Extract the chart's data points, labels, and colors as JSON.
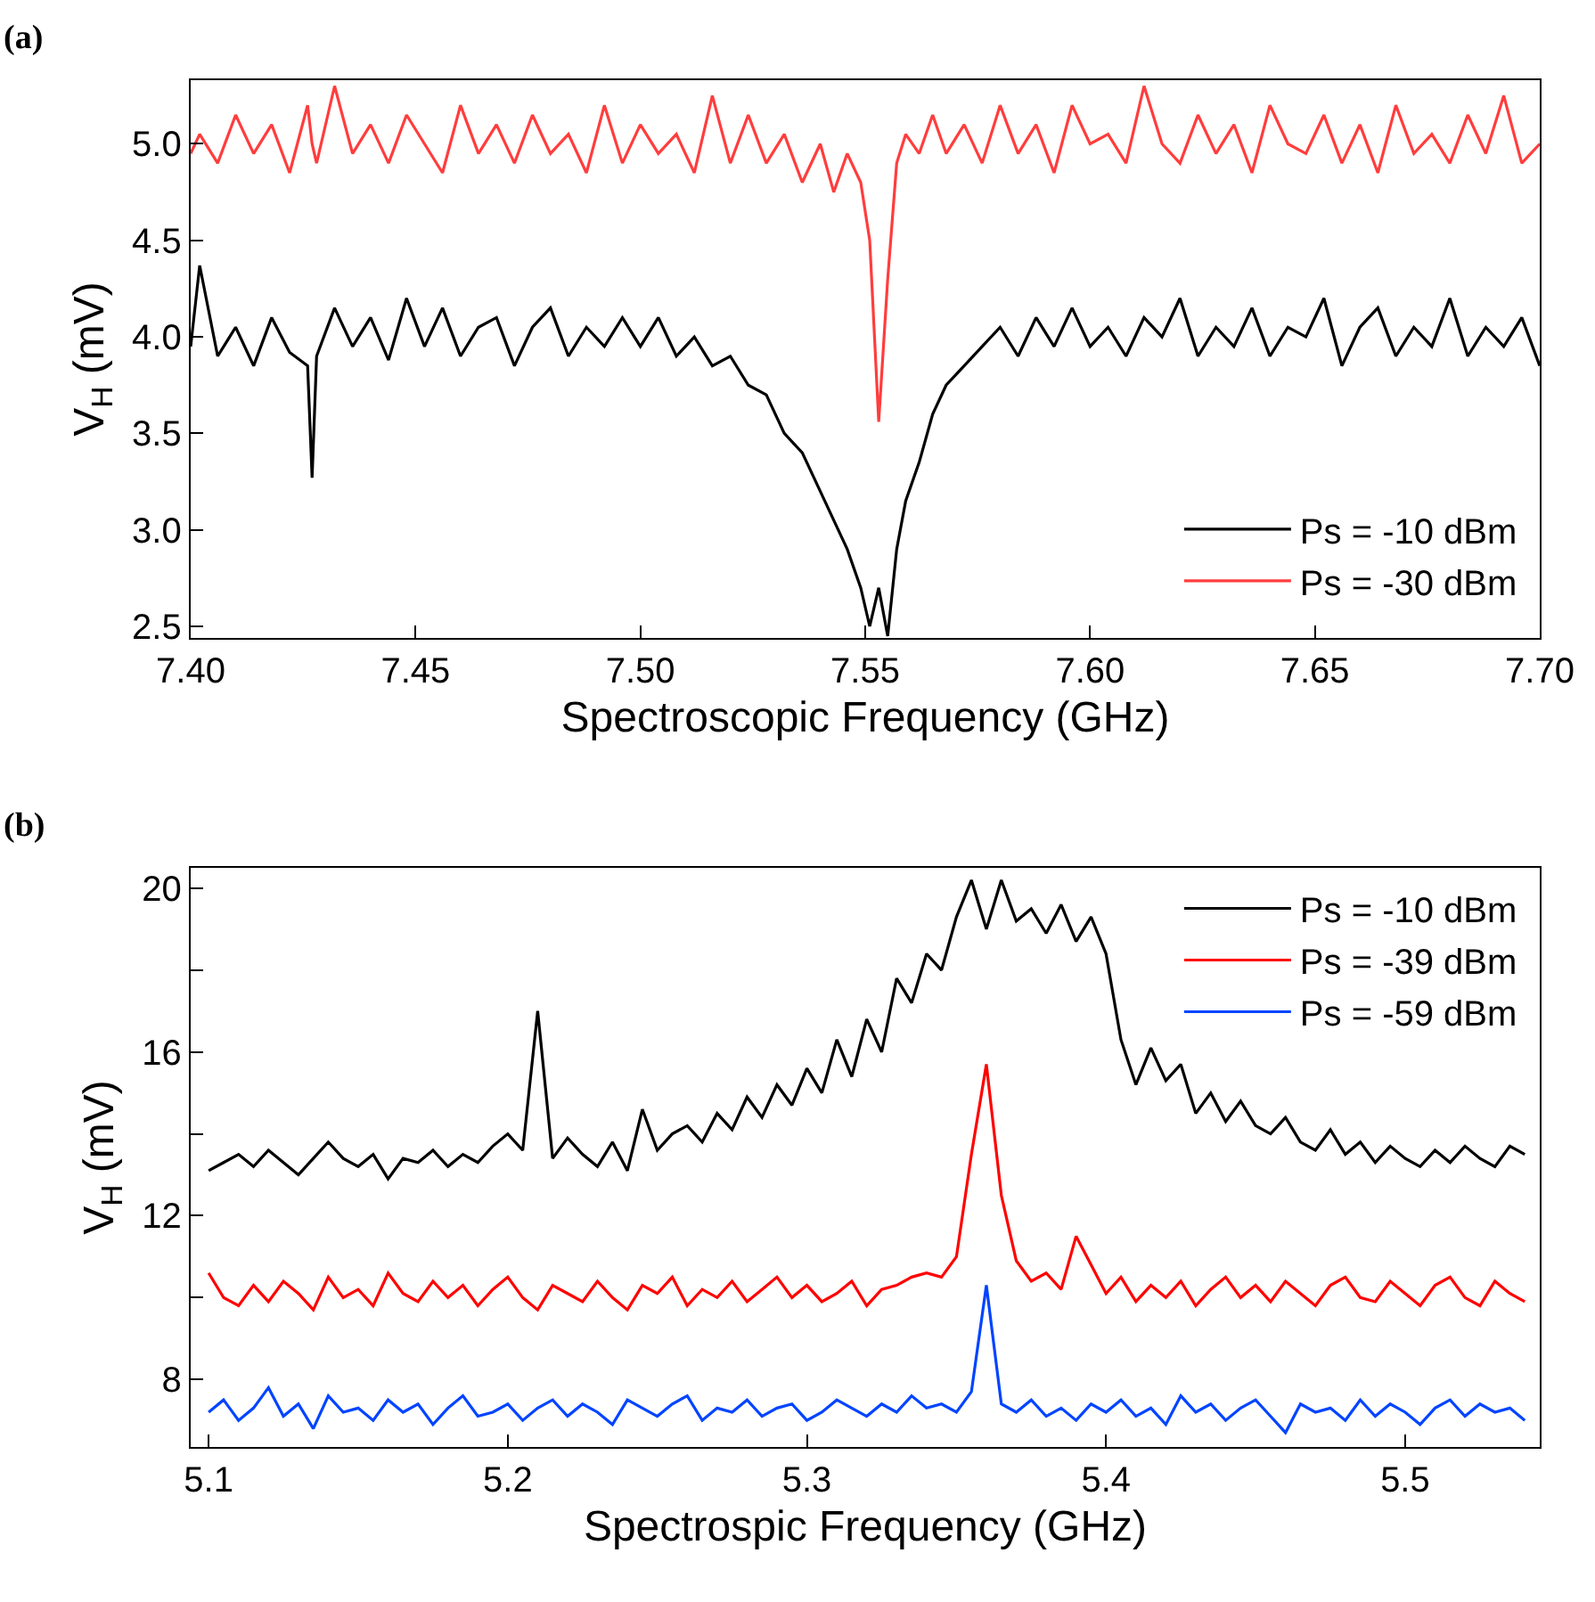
{
  "chart_data": [
    {
      "type": "line",
      "title": "(a)",
      "xlabel": "Spectroscopic Frequency (GHz)",
      "ylabel": "V$_{H}$ (mV)",
      "x": [
        7.4,
        7.402,
        7.406,
        7.41,
        7.414,
        7.418,
        7.422,
        7.426,
        7.427,
        7.428,
        7.432,
        7.436,
        7.44,
        7.444,
        7.448,
        7.452,
        7.456,
        7.46,
        7.464,
        7.468,
        7.472,
        7.476,
        7.48,
        7.484,
        7.488,
        7.492,
        7.496,
        7.5,
        7.504,
        7.508,
        7.512,
        7.516,
        7.52,
        7.524,
        7.528,
        7.532,
        7.536,
        7.54,
        7.543,
        7.546,
        7.549,
        7.551,
        7.553,
        7.555,
        7.557,
        7.559,
        7.562,
        7.565,
        7.568,
        7.572,
        7.576,
        7.58,
        7.584,
        7.588,
        7.592,
        7.596,
        7.6,
        7.604,
        7.608,
        7.612,
        7.616,
        7.62,
        7.624,
        7.628,
        7.632,
        7.636,
        7.64,
        7.644,
        7.648,
        7.652,
        7.656,
        7.66,
        7.664,
        7.668,
        7.672,
        7.676,
        7.68,
        7.684,
        7.688,
        7.692,
        7.696,
        7.7
      ],
      "series": [
        {
          "name": "Ps = -10 dBm",
          "color": "#000000",
          "values": [
            3.95,
            4.37,
            3.9,
            4.05,
            3.85,
            4.1,
            3.92,
            3.85,
            3.27,
            3.9,
            4.15,
            3.95,
            4.1,
            3.88,
            4.2,
            3.95,
            4.15,
            3.9,
            4.05,
            4.1,
            3.85,
            4.05,
            4.15,
            3.9,
            4.05,
            3.95,
            4.1,
            3.95,
            4.1,
            3.9,
            4.0,
            3.85,
            3.9,
            3.75,
            3.7,
            3.5,
            3.4,
            3.2,
            3.05,
            2.9,
            2.7,
            2.5,
            2.7,
            2.45,
            2.9,
            3.15,
            3.35,
            3.6,
            3.75,
            3.85,
            3.95,
            4.05,
            3.9,
            4.1,
            3.95,
            4.15,
            3.95,
            4.05,
            3.9,
            4.1,
            4.0,
            4.2,
            3.9,
            4.05,
            3.95,
            4.15,
            3.9,
            4.05,
            4.0,
            4.2,
            3.85,
            4.05,
            4.15,
            3.9,
            4.05,
            3.95,
            4.2,
            3.9,
            4.05,
            3.95,
            4.1,
            3.85
          ]
        },
        {
          "name": "Ps = -30 dBm",
          "color": "#ff3d3d",
          "values": [
            4.95,
            5.05,
            4.9,
            5.15,
            4.95,
            5.1,
            4.85,
            5.2,
            5.0,
            4.9,
            5.3,
            4.95,
            5.1,
            4.9,
            5.15,
            5.0,
            4.85,
            5.2,
            4.95,
            5.1,
            4.9,
            5.15,
            4.95,
            5.05,
            4.85,
            5.2,
            4.9,
            5.1,
            4.95,
            5.05,
            4.85,
            5.25,
            4.9,
            5.15,
            4.9,
            5.05,
            4.8,
            5.0,
            4.75,
            4.95,
            4.8,
            4.5,
            3.56,
            4.3,
            4.9,
            5.05,
            4.95,
            5.15,
            4.95,
            5.1,
            4.9,
            5.2,
            4.95,
            5.1,
            4.85,
            5.2,
            5.0,
            5.05,
            4.9,
            5.3,
            5.0,
            4.9,
            5.15,
            4.95,
            5.1,
            4.85,
            5.2,
            5.0,
            4.95,
            5.15,
            4.9,
            5.1,
            4.85,
            5.2,
            4.95,
            5.05,
            4.9,
            5.15,
            4.95,
            5.25,
            4.9,
            5.0
          ]
        }
      ],
      "xlim": [
        7.4,
        7.7
      ],
      "xticks": [
        {
          "value": 7.4,
          "label": "7.40"
        },
        7.45,
        {
          "value": 7.5,
          "label": "7.50"
        },
        7.55,
        {
          "value": 7.6,
          "label": "7.60"
        },
        7.65,
        {
          "value": 7.7,
          "label": "7.70"
        }
      ],
      "ylim": [
        2.44,
        5.33
      ],
      "yticks": [
        2.5,
        {
          "value": 3.0,
          "label": "3.0"
        },
        3.5,
        {
          "value": 4.0,
          "label": "4.0"
        },
        4.5,
        {
          "value": 5.0,
          "label": "5.0"
        }
      ],
      "legend": "bottom right",
      "marker": "none",
      "line_style": "solid"
    },
    {
      "type": "line",
      "title": "(b)",
      "xlabel": "Spectrospic Frequency (GHz)",
      "ylabel": "V$_{H}$ (mV)",
      "x": [
        5.1,
        5.105,
        5.11,
        5.115,
        5.12,
        5.125,
        5.13,
        5.135,
        5.14,
        5.145,
        5.15,
        5.155,
        5.16,
        5.165,
        5.17,
        5.175,
        5.18,
        5.185,
        5.19,
        5.195,
        5.2,
        5.205,
        5.21,
        5.215,
        5.22,
        5.225,
        5.23,
        5.235,
        5.24,
        5.245,
        5.25,
        5.255,
        5.26,
        5.265,
        5.27,
        5.275,
        5.28,
        5.285,
        5.29,
        5.295,
        5.3,
        5.305,
        5.31,
        5.315,
        5.32,
        5.325,
        5.33,
        5.335,
        5.34,
        5.345,
        5.35,
        5.355,
        5.36,
        5.365,
        5.37,
        5.375,
        5.38,
        5.385,
        5.39,
        5.395,
        5.4,
        5.405,
        5.41,
        5.415,
        5.42,
        5.425,
        5.43,
        5.435,
        5.44,
        5.445,
        5.45,
        5.455,
        5.46,
        5.465,
        5.47,
        5.475,
        5.48,
        5.485,
        5.49,
        5.495,
        5.5,
        5.505,
        5.51,
        5.515,
        5.52,
        5.525,
        5.53,
        5.535,
        5.54
      ],
      "series": [
        {
          "name": "Ps = -10 dBm",
          "color": "#000000",
          "values": [
            13.1,
            13.3,
            13.5,
            13.2,
            13.6,
            13.3,
            13.0,
            13.4,
            13.8,
            13.4,
            13.2,
            13.5,
            12.9,
            13.4,
            13.3,
            13.6,
            13.2,
            13.5,
            13.3,
            13.7,
            14.0,
            13.6,
            17.0,
            13.4,
            13.9,
            13.5,
            13.2,
            13.8,
            13.1,
            14.6,
            13.6,
            14.0,
            14.2,
            13.8,
            14.5,
            14.1,
            14.9,
            14.4,
            15.2,
            14.7,
            15.6,
            15.0,
            16.3,
            15.4,
            16.8,
            16.0,
            17.8,
            17.2,
            18.4,
            18.0,
            19.3,
            20.2,
            19.0,
            20.2,
            19.2,
            19.5,
            18.9,
            19.6,
            18.7,
            19.3,
            18.4,
            16.3,
            15.2,
            16.1,
            15.3,
            15.7,
            14.5,
            15.0,
            14.3,
            14.8,
            14.2,
            14.0,
            14.4,
            13.8,
            13.6,
            14.1,
            13.5,
            13.8,
            13.3,
            13.7,
            13.4,
            13.2,
            13.6,
            13.3,
            13.7,
            13.4,
            13.2,
            13.7,
            13.5
          ]
        },
        {
          "name": "Ps = -39 dBm",
          "color": "#ff0000",
          "values": [
            10.6,
            10.0,
            9.8,
            10.3,
            9.9,
            10.4,
            10.1,
            9.7,
            10.5,
            10.0,
            10.2,
            9.8,
            10.6,
            10.1,
            9.9,
            10.4,
            10.0,
            10.3,
            9.8,
            10.2,
            10.5,
            10.0,
            9.7,
            10.3,
            10.1,
            9.9,
            10.4,
            10.0,
            9.7,
            10.3,
            10.1,
            10.5,
            9.8,
            10.2,
            10.0,
            10.4,
            9.9,
            10.2,
            10.5,
            10.0,
            10.3,
            9.9,
            10.1,
            10.4,
            9.8,
            10.2,
            10.3,
            10.5,
            10.6,
            10.5,
            11.0,
            13.5,
            15.7,
            12.5,
            10.9,
            10.4,
            10.6,
            10.2,
            11.5,
            10.8,
            10.1,
            10.5,
            9.9,
            10.3,
            10.0,
            10.4,
            9.8,
            10.2,
            10.5,
            10.0,
            10.3,
            9.9,
            10.4,
            10.1,
            9.8,
            10.3,
            10.5,
            10.0,
            9.9,
            10.4,
            10.1,
            9.8,
            10.3,
            10.5,
            10.0,
            9.8,
            10.4,
            10.1,
            9.9
          ]
        },
        {
          "name": "Ps = -59 dBm",
          "color": "#0044ff",
          "values": [
            7.2,
            7.5,
            7.0,
            7.3,
            7.8,
            7.1,
            7.4,
            6.8,
            7.6,
            7.2,
            7.3,
            7.0,
            7.5,
            7.2,
            7.4,
            6.9,
            7.3,
            7.6,
            7.1,
            7.2,
            7.4,
            7.0,
            7.3,
            7.5,
            7.1,
            7.4,
            7.2,
            6.9,
            7.5,
            7.3,
            7.1,
            7.4,
            7.6,
            7.0,
            7.3,
            7.2,
            7.5,
            7.1,
            7.3,
            7.4,
            7.0,
            7.2,
            7.5,
            7.3,
            7.1,
            7.4,
            7.2,
            7.6,
            7.3,
            7.4,
            7.2,
            7.7,
            10.3,
            7.4,
            7.2,
            7.5,
            7.1,
            7.3,
            7.0,
            7.4,
            7.2,
            7.5,
            7.1,
            7.3,
            6.9,
            7.6,
            7.2,
            7.4,
            7.0,
            7.3,
            7.5,
            7.1,
            6.7,
            7.4,
            7.2,
            7.3,
            7.0,
            7.5,
            7.1,
            7.4,
            7.2,
            6.9,
            7.3,
            7.5,
            7.1,
            7.4,
            7.2,
            7.3,
            7.0
          ]
        }
      ],
      "xlim": [
        5.094,
        5.545
      ],
      "xticks": [
        5.1,
        5.2,
        5.3,
        5.4,
        5.5
      ],
      "ylim": [
        6.35,
        20.5
      ],
      "yticks": [
        8,
        {
          "value": 10,
          "label": null
        },
        12,
        {
          "value": 14,
          "label": null
        },
        16,
        {
          "value": 18,
          "label": null
        },
        20
      ],
      "legend": "top right",
      "marker": "none",
      "line_style": "solid"
    }
  ]
}
